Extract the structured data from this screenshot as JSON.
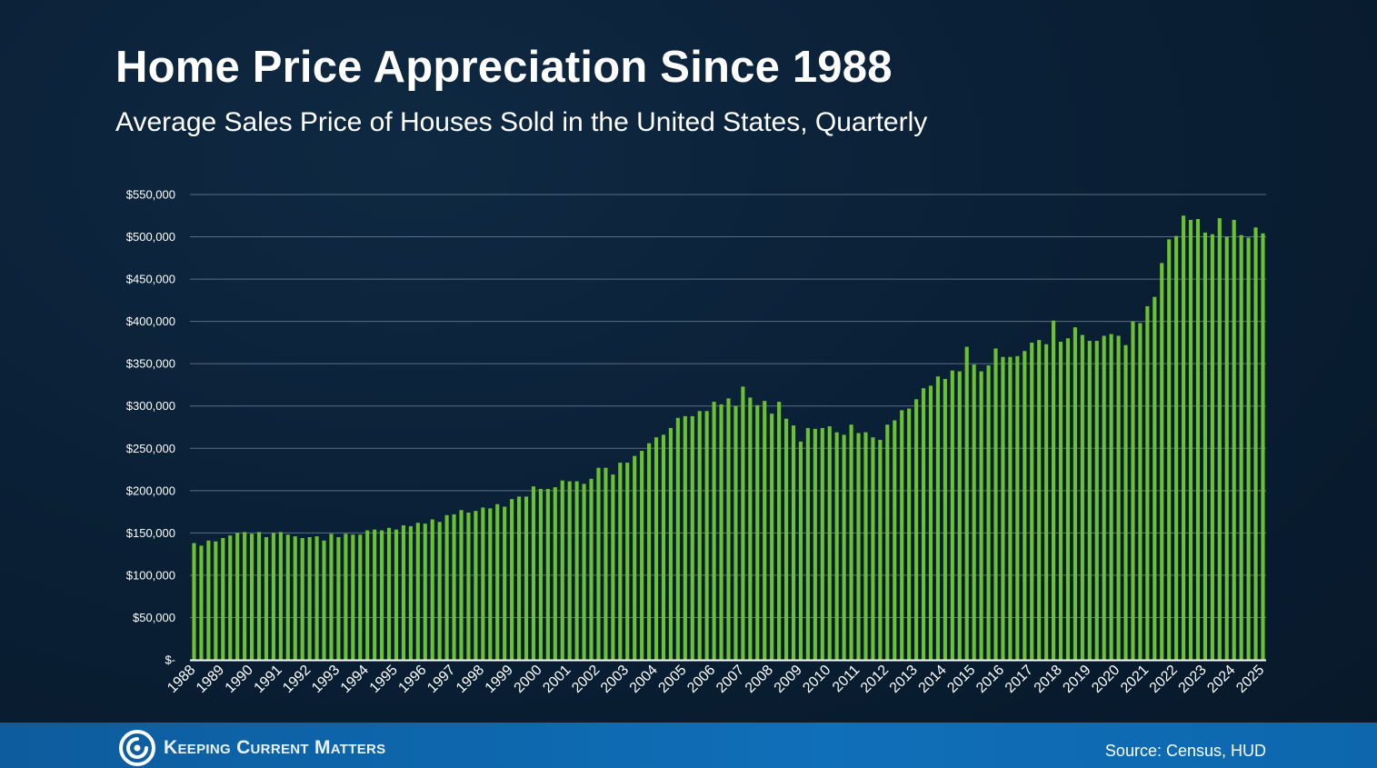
{
  "header": {
    "title": "Home Price Appreciation Since 1988",
    "subtitle": "Average Sales Price of Houses Sold in the United States, Quarterly"
  },
  "footer": {
    "brand": "Keeping Current Matters",
    "source": "Source: Census, HUD"
  },
  "colors": {
    "bar": "#6cc12e",
    "gridline": "#5b6f82",
    "axis": "#ffffff",
    "footer_band": "#0f6fb8"
  },
  "icons": {
    "logo": "kcm-swirl-logo-icon"
  },
  "chart_data": {
    "type": "bar",
    "title": "Home Price Appreciation Since 1988",
    "subtitle": "Average Sales Price of Houses Sold in the United States, Quarterly",
    "xlabel": "",
    "ylabel": "",
    "ylim": [
      0,
      550000
    ],
    "y_ticks": [
      0,
      50000,
      100000,
      150000,
      200000,
      250000,
      300000,
      350000,
      400000,
      450000,
      500000,
      550000
    ],
    "y_tick_labels": [
      "$-",
      "$50,000",
      "$100,000",
      "$150,000",
      "$200,000",
      "$250,000",
      "$300,000",
      "$350,000",
      "$400,000",
      "$450,000",
      "$500,000",
      "$550,000"
    ],
    "x_tick_labels": [
      "1988",
      "1989",
      "1990",
      "1991",
      "1992",
      "1993",
      "1994",
      "1995",
      "1996",
      "1997",
      "1998",
      "1999",
      "2000",
      "2001",
      "2002",
      "2003",
      "2004",
      "2005",
      "2006",
      "2007",
      "2008",
      "2009",
      "2010",
      "2011",
      "2012",
      "2013",
      "2014",
      "2015",
      "2016",
      "2017",
      "2018",
      "2019",
      "2020",
      "2021",
      "2022",
      "2023",
      "2024",
      "2025"
    ],
    "grid": true,
    "legend": "none",
    "values": [
      138000,
      135000,
      141000,
      140000,
      144000,
      147000,
      150000,
      151000,
      149000,
      151000,
      145000,
      150000,
      151000,
      148000,
      146000,
      144000,
      145000,
      146000,
      141000,
      149000,
      145000,
      149000,
      148000,
      148000,
      153000,
      154000,
      153000,
      156000,
      154000,
      159000,
      158000,
      162000,
      161000,
      166000,
      163000,
      171000,
      172000,
      177000,
      174000,
      176000,
      180000,
      179000,
      184000,
      181000,
      190000,
      193000,
      193000,
      205000,
      202000,
      202000,
      204000,
      212000,
      211000,
      211000,
      208000,
      214000,
      227000,
      227000,
      219000,
      233000,
      233000,
      241000,
      247000,
      256000,
      263000,
      266000,
      274000,
      286000,
      288000,
      288000,
      294000,
      294000,
      305000,
      302000,
      309000,
      300000,
      323000,
      310000,
      301000,
      306000,
      291000,
      305000,
      285000,
      277000,
      258000,
      274000,
      273000,
      274000,
      276000,
      269000,
      266000,
      278000,
      268000,
      269000,
      263000,
      260000,
      278000,
      283000,
      295000,
      297000,
      308000,
      321000,
      324000,
      335000,
      332000,
      342000,
      341000,
      370000,
      349000,
      341000,
      348000,
      368000,
      358000,
      358000,
      359000,
      365000,
      375000,
      378000,
      373000,
      401000,
      376000,
      380000,
      393000,
      384000,
      377000,
      377000,
      383000,
      385000,
      383000,
      372000,
      400000,
      398000,
      418000,
      429000,
      469000,
      497000,
      501000,
      525000,
      520000,
      521000,
      505000,
      503000,
      522000,
      500000,
      520000,
      502000,
      499000,
      511000,
      504000
    ]
  }
}
